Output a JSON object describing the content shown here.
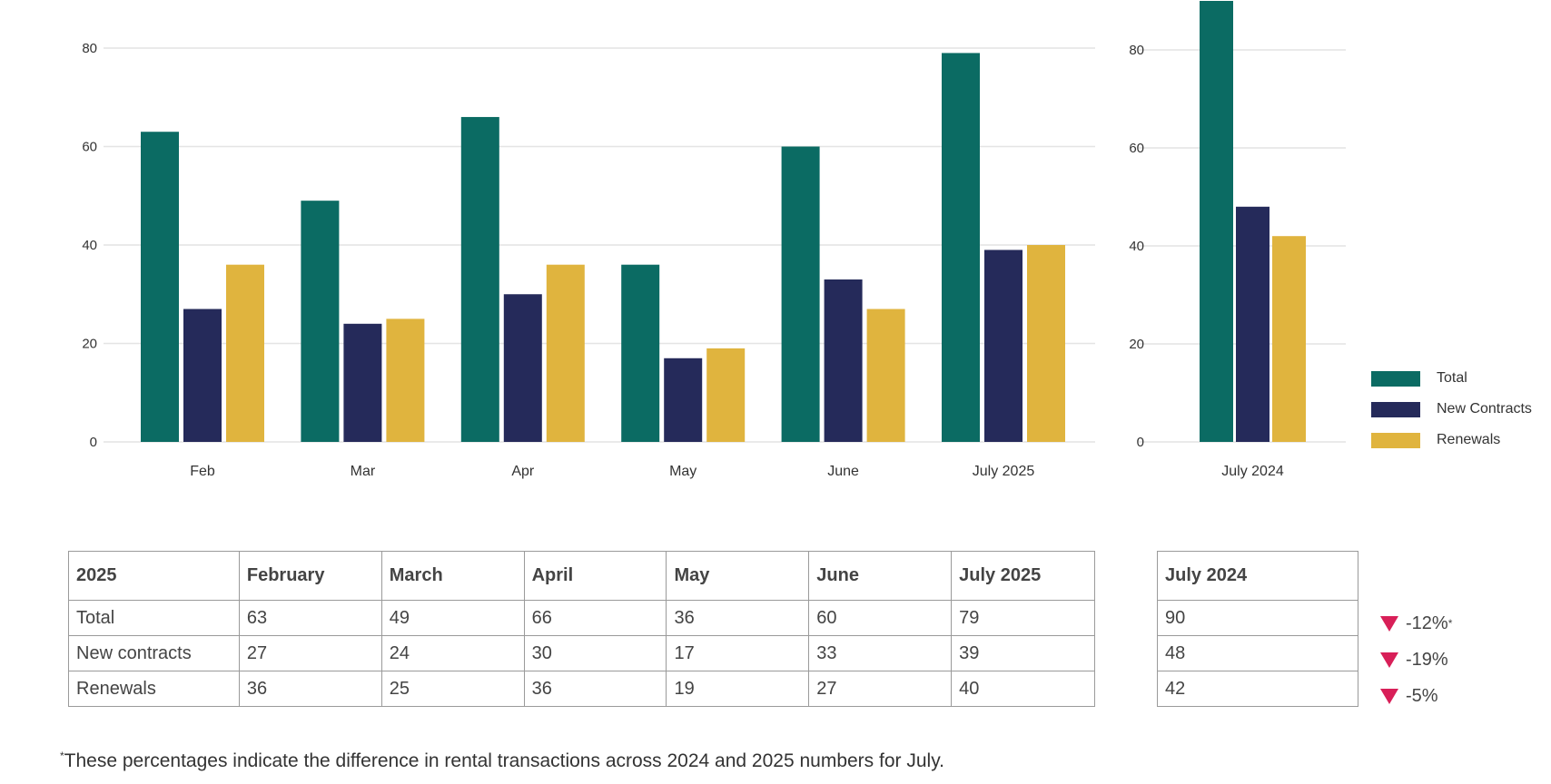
{
  "colors": {
    "total": "#0b6b63",
    "new_contracts": "#252a5a",
    "renewals": "#e0b43e",
    "grid": "#e4e4e4",
    "decrease": "#d81f58"
  },
  "chart_data": [
    {
      "type": "bar",
      "categories": [
        "Feb",
        "Mar",
        "Apr",
        "May",
        "June",
        "July 2025"
      ],
      "series": [
        {
          "name": "Total",
          "values": [
            63,
            49,
            66,
            36,
            60,
            79
          ]
        },
        {
          "name": "New Contracts",
          "values": [
            27,
            24,
            30,
            17,
            33,
            39
          ]
        },
        {
          "name": "Renewals",
          "values": [
            36,
            25,
            36,
            19,
            27,
            40
          ]
        }
      ],
      "yticks": [
        0,
        20,
        40,
        60,
        80
      ],
      "ylim": [
        0,
        90
      ],
      "grid": true
    },
    {
      "type": "bar",
      "categories": [
        "July 2024"
      ],
      "series": [
        {
          "name": "Total",
          "values": [
            90
          ]
        },
        {
          "name": "New Contracts",
          "values": [
            48
          ]
        },
        {
          "name": "Renewals",
          "values": [
            42
          ]
        }
      ],
      "yticks": [
        0,
        20,
        40,
        60,
        80
      ],
      "ylim": [
        0,
        90
      ],
      "grid": true,
      "legend": "right"
    }
  ],
  "legend": [
    "Total",
    "New Contracts",
    "Renewals"
  ],
  "table_2025": {
    "headers": [
      "2025",
      "February",
      "March",
      "April",
      "May",
      "June",
      "July 2025"
    ],
    "rows": [
      [
        "Total",
        "63",
        "49",
        "66",
        "36",
        "60",
        "79"
      ],
      [
        "New contracts",
        "27",
        "24",
        "30",
        "17",
        "33",
        "39"
      ],
      [
        "Renewals",
        "36",
        "25",
        "36",
        "19",
        "27",
        "40"
      ]
    ]
  },
  "table_2024": {
    "header": "July 2024",
    "rows": [
      "90",
      "48",
      "42"
    ]
  },
  "changes": [
    {
      "value": "-12%",
      "note": "*"
    },
    {
      "value": "-19%",
      "note": ""
    },
    {
      "value": "-5%",
      "note": ""
    }
  ],
  "footnote": {
    "mark": "*",
    "text": "These percentages indicate the difference in rental transactions across 2024 and 2025 numbers for July."
  }
}
